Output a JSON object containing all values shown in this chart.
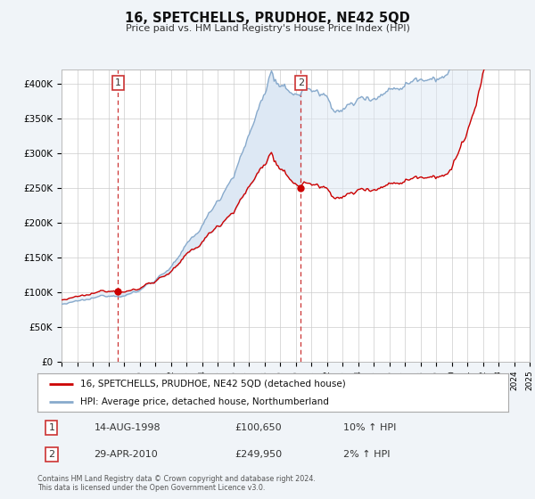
{
  "title": "16, SPETCHELLS, PRUDHOE, NE42 5QD",
  "subtitle": "Price paid vs. HM Land Registry's House Price Index (HPI)",
  "legend_label_red": "16, SPETCHELLS, PRUDHOE, NE42 5QD (detached house)",
  "legend_label_blue": "HPI: Average price, detached house, Northumberland",
  "transaction1_date": "14-AUG-1998",
  "transaction1_price": "£100,650",
  "transaction1_hpi": "10% ↑ HPI",
  "transaction1_year": 1998.62,
  "transaction1_value": 100650,
  "transaction2_date": "29-APR-2010",
  "transaction2_price": "£249,950",
  "transaction2_hpi": "2% ↑ HPI",
  "transaction2_year": 2010.33,
  "transaction2_value": 249950,
  "ylim": [
    0,
    420000
  ],
  "yticks": [
    0,
    50000,
    100000,
    150000,
    200000,
    250000,
    300000,
    350000,
    400000
  ],
  "ytick_labels": [
    "£0",
    "£50K",
    "£100K",
    "£150K",
    "£200K",
    "£250K",
    "£300K",
    "£350K",
    "£400K"
  ],
  "footer1": "Contains HM Land Registry data © Crown copyright and database right 2024.",
  "footer2": "This data is licensed under the Open Government Licence v3.0.",
  "bg_color": "#f0f4f8",
  "plot_bg_color": "#ffffff",
  "red_color": "#cc0000",
  "blue_color": "#88aacc",
  "fill_color": "#dde8f4",
  "grid_color": "#cccccc",
  "vline_color": "#cc3333",
  "marker_color": "#cc0000",
  "xmin": 1995,
  "xmax": 2025
}
